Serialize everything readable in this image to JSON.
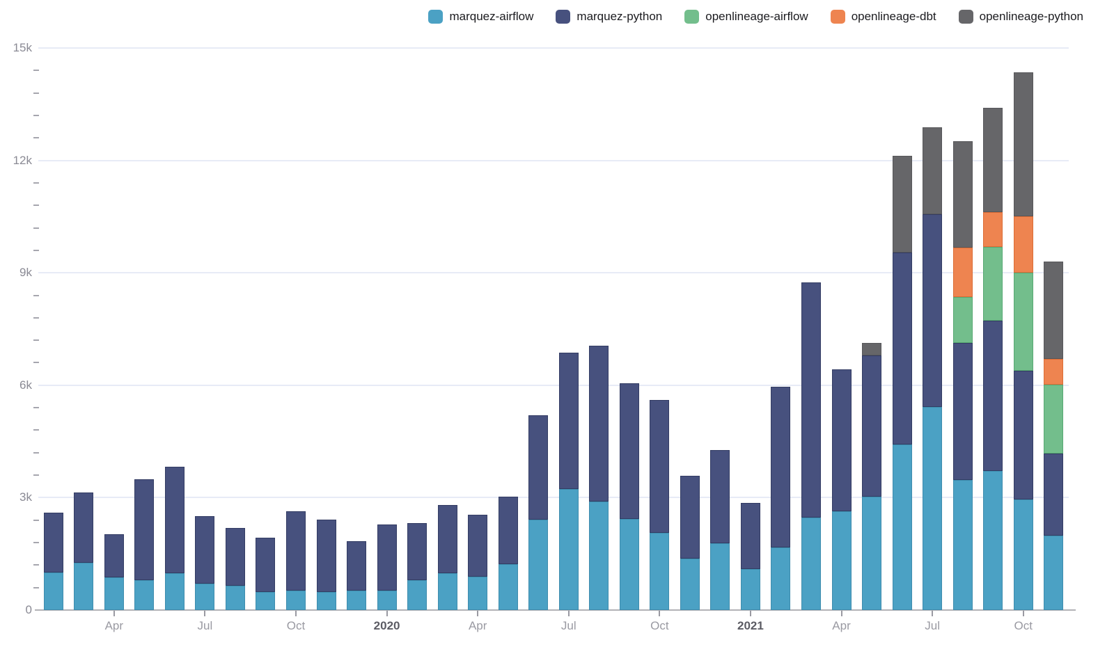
{
  "chart_data": {
    "type": "bar",
    "stacked": true,
    "title": "",
    "xlabel": "",
    "ylabel": "",
    "ylim": [
      0,
      15000
    ],
    "grid": true,
    "legend_position": "top-right",
    "y_major_ticks": [
      {
        "value": 0,
        "label": "0"
      },
      {
        "value": 3000,
        "label": "3k"
      },
      {
        "value": 6000,
        "label": "6k"
      },
      {
        "value": 9000,
        "label": "9k"
      },
      {
        "value": 12000,
        "label": "12k"
      },
      {
        "value": 15000,
        "label": "15k"
      }
    ],
    "y_minor_interval": 600,
    "x": [
      "2019-02",
      "2019-03",
      "2019-04",
      "2019-05",
      "2019-06",
      "2019-07",
      "2019-08",
      "2019-09",
      "2019-10",
      "2019-11",
      "2019-12",
      "2020-01",
      "2020-02",
      "2020-03",
      "2020-04",
      "2020-05",
      "2020-06",
      "2020-07",
      "2020-08",
      "2020-09",
      "2020-10",
      "2020-11",
      "2020-12",
      "2021-01",
      "2021-02",
      "2021-03",
      "2021-04",
      "2021-05",
      "2021-06",
      "2021-07",
      "2021-08",
      "2021-09",
      "2021-10",
      "2021-11"
    ],
    "x_tick_labels": [
      {
        "index": 2,
        "label": "Apr",
        "bold": false
      },
      {
        "index": 5,
        "label": "Jul",
        "bold": false
      },
      {
        "index": 8,
        "label": "Oct",
        "bold": false
      },
      {
        "index": 11,
        "label": "2020",
        "bold": true
      },
      {
        "index": 14,
        "label": "Apr",
        "bold": false
      },
      {
        "index": 17,
        "label": "Jul",
        "bold": false
      },
      {
        "index": 20,
        "label": "Oct",
        "bold": false
      },
      {
        "index": 23,
        "label": "2021",
        "bold": true
      },
      {
        "index": 26,
        "label": "Apr",
        "bold": false
      },
      {
        "index": 29,
        "label": "Jul",
        "bold": false
      },
      {
        "index": 32,
        "label": "Oct",
        "bold": false
      }
    ],
    "series": [
      {
        "name": "marquez-airflow",
        "color": "#4ba1c4",
        "border_color": "#3e8cad",
        "values": [
          1000,
          1260,
          880,
          790,
          980,
          715,
          645,
          485,
          525,
          475,
          515,
          520,
          800,
          985,
          900,
          1225,
          2415,
          3225,
          2905,
          2425,
          2055,
          1370,
          1785,
          1090,
          1670,
          2470,
          2630,
          3020,
          4425,
          5415,
          3470,
          3720,
          2955,
          1990
        ]
      },
      {
        "name": "marquez-python",
        "color": "#47517e",
        "border_color": "#333c63",
        "values": [
          1600,
          1870,
          1150,
          2700,
          2850,
          1790,
          1555,
          1440,
          2110,
          1945,
          1320,
          1770,
          1515,
          1815,
          1640,
          1810,
          2790,
          3635,
          4155,
          3620,
          3545,
          2220,
          2485,
          1770,
          4285,
          6280,
          3790,
          3770,
          5110,
          5145,
          3655,
          3995,
          3430,
          2190
        ]
      },
      {
        "name": "openlineage-airflow",
        "color": "#73be8c",
        "border_color": "#58a873",
        "values": [
          0,
          0,
          0,
          0,
          0,
          0,
          0,
          0,
          0,
          0,
          0,
          0,
          0,
          0,
          0,
          0,
          0,
          0,
          0,
          0,
          0,
          0,
          0,
          0,
          0,
          0,
          0,
          0,
          0,
          0,
          1225,
          1975,
          2615,
          1835
        ]
      },
      {
        "name": "openlineage-dbt",
        "color": "#ee8450",
        "border_color": "#dc6d36",
        "values": [
          0,
          0,
          0,
          0,
          0,
          0,
          0,
          0,
          0,
          0,
          0,
          0,
          0,
          0,
          0,
          0,
          0,
          0,
          0,
          0,
          0,
          0,
          0,
          0,
          0,
          0,
          0,
          0,
          0,
          0,
          1320,
          930,
          1510,
          680
        ]
      },
      {
        "name": "openlineage-python",
        "color": "#666669",
        "border_color": "#57575a",
        "values": [
          0,
          0,
          0,
          0,
          0,
          0,
          0,
          0,
          0,
          0,
          0,
          0,
          0,
          0,
          0,
          0,
          0,
          0,
          0,
          0,
          0,
          0,
          0,
          0,
          0,
          0,
          0,
          335,
          2595,
          2330,
          2845,
          2780,
          3850,
          2605
        ]
      }
    ]
  }
}
